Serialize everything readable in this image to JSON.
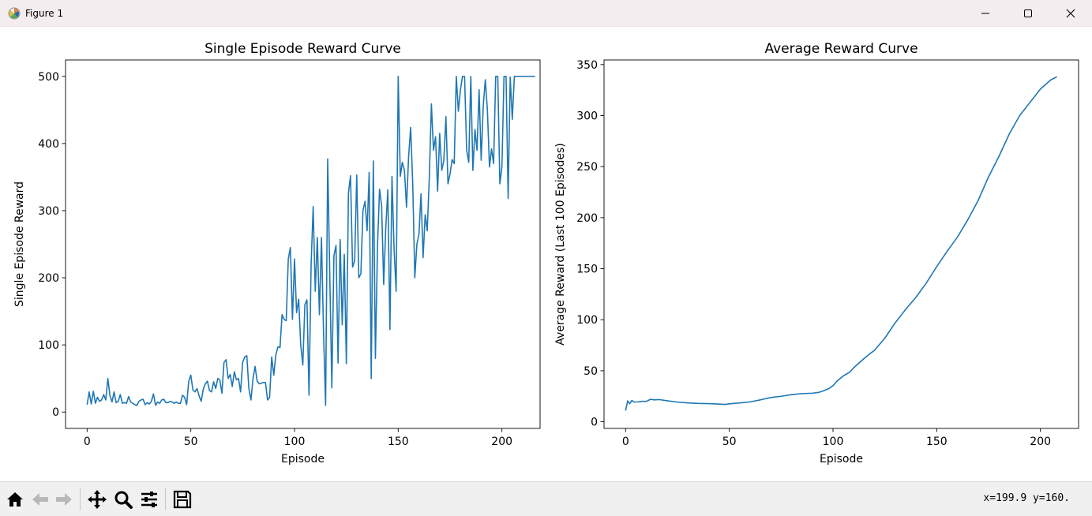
{
  "window": {
    "title": "Figure 1",
    "icons": [
      "matplotlib-icon",
      "minimize-icon",
      "maximize-icon",
      "close-icon"
    ]
  },
  "toolbar": {
    "buttons": [
      "home-icon",
      "back-icon",
      "forward-icon",
      "pan-icon",
      "zoom-icon",
      "configure-subplots-icon",
      "save-icon"
    ],
    "coordinates": "x=199.9 y=160."
  },
  "chart_data": [
    {
      "type": "line",
      "title": "Single Episode Reward Curve",
      "xlabel": "Episode",
      "ylabel": "Single Episode Reward",
      "xlim": [
        -10.4,
        218.4
      ],
      "ylim": [
        -24.4,
        524.4
      ],
      "xticks": [
        0,
        50,
        100,
        150,
        200
      ],
      "yticks": [
        0,
        100,
        200,
        300,
        400,
        500
      ],
      "grid": false,
      "color": "#1f77b4",
      "x_start": 0,
      "values": [
        11,
        30,
        12,
        31,
        13,
        22,
        16,
        18,
        26,
        18,
        50,
        25,
        15,
        30,
        14,
        16,
        26,
        13,
        14,
        13,
        23,
        15,
        13,
        11,
        10,
        16,
        18,
        19,
        11,
        14,
        12,
        16,
        27,
        10,
        15,
        13,
        18,
        19,
        14,
        14,
        16,
        15,
        13,
        15,
        13,
        13,
        25,
        22,
        11,
        46,
        55,
        33,
        30,
        35,
        24,
        16,
        34,
        42,
        46,
        32,
        30,
        45,
        35,
        50,
        48,
        28,
        74,
        78,
        50,
        56,
        38,
        60,
        48,
        50,
        30,
        74,
        82,
        84,
        35,
        18,
        50,
        68,
        46,
        42,
        43,
        44,
        44,
        18,
        22,
        82,
        55,
        85,
        97,
        96,
        145,
        138,
        136,
        228,
        245,
        138,
        228,
        148,
        168,
        100,
        70,
        160,
        167,
        25,
        219,
        306,
        180,
        260,
        145,
        260,
        118,
        10,
        377,
        205,
        36,
        233,
        248,
        73,
        257,
        130,
        235,
        72,
        326,
        352,
        216,
        225,
        353,
        200,
        206,
        300,
        314,
        270,
        357,
        50,
        374,
        80,
        245,
        332,
        307,
        190,
        275,
        331,
        123,
        351,
        243,
        180,
        500,
        351,
        372,
        360,
        305,
        380,
        424,
        340,
        200,
        250,
        265,
        325,
        230,
        294,
        270,
        350,
        459,
        390,
        410,
        329,
        415,
        360,
        375,
        440,
        340,
        355,
        376,
        370,
        500,
        448,
        480,
        500,
        500,
        390,
        372,
        500,
        360,
        421,
        390,
        480,
        375,
        456,
        495,
        450,
        365,
        392,
        370,
        500,
        500,
        340,
        365,
        500,
        500,
        318,
        499,
        436,
        500,
        500,
        500,
        500,
        500,
        500,
        500,
        500,
        500,
        500,
        500
      ]
    },
    {
      "type": "line",
      "title": "Average Reward Curve",
      "xlabel": "Episode",
      "ylabel": "Average Reward (Last 100 Episodes)",
      "xlim": [
        -10.4,
        218.4
      ],
      "ylim": [
        -6.5,
        354.5
      ],
      "xticks": [
        0,
        50,
        100,
        150,
        200
      ],
      "yticks": [
        0,
        50,
        100,
        150,
        200,
        250,
        300,
        350
      ],
      "grid": false,
      "color": "#1f77b4",
      "x_start": 0,
      "points": [
        [
          0,
          11
        ],
        [
          1,
          20.5
        ],
        [
          2,
          17.7
        ],
        [
          3,
          21
        ],
        [
          4,
          19.4
        ],
        [
          6,
          19.5
        ],
        [
          8,
          20
        ],
        [
          10,
          20
        ],
        [
          12,
          22
        ],
        [
          14,
          21.5
        ],
        [
          16,
          21.8
        ],
        [
          20,
          20.6
        ],
        [
          25,
          19.3
        ],
        [
          30,
          18.5
        ],
        [
          35,
          18
        ],
        [
          40,
          17.8
        ],
        [
          45,
          17.3
        ],
        [
          48,
          17
        ],
        [
          50,
          17.6
        ],
        [
          55,
          18.5
        ],
        [
          60,
          19.5
        ],
        [
          65,
          21.5
        ],
        [
          70,
          23.8
        ],
        [
          75,
          25
        ],
        [
          80,
          26.6
        ],
        [
          85,
          27.6
        ],
        [
          90,
          28
        ],
        [
          93,
          28.8
        ],
        [
          95,
          30
        ],
        [
          98,
          32.5
        ],
        [
          100,
          35.5
        ],
        [
          102,
          40
        ],
        [
          105,
          45
        ],
        [
          108,
          48.5
        ],
        [
          110,
          53
        ],
        [
          115,
          62
        ],
        [
          118,
          67
        ],
        [
          120,
          70
        ],
        [
          125,
          82
        ],
        [
          130,
          97
        ],
        [
          135,
          110
        ],
        [
          140,
          122
        ],
        [
          145,
          136
        ],
        [
          150,
          152
        ],
        [
          155,
          167
        ],
        [
          160,
          181
        ],
        [
          165,
          198
        ],
        [
          170,
          217
        ],
        [
          175,
          240
        ],
        [
          180,
          260
        ],
        [
          185,
          282
        ],
        [
          190,
          300
        ],
        [
          195,
          313
        ],
        [
          200,
          326
        ],
        [
          205,
          335
        ],
        [
          208,
          338
        ]
      ]
    }
  ]
}
